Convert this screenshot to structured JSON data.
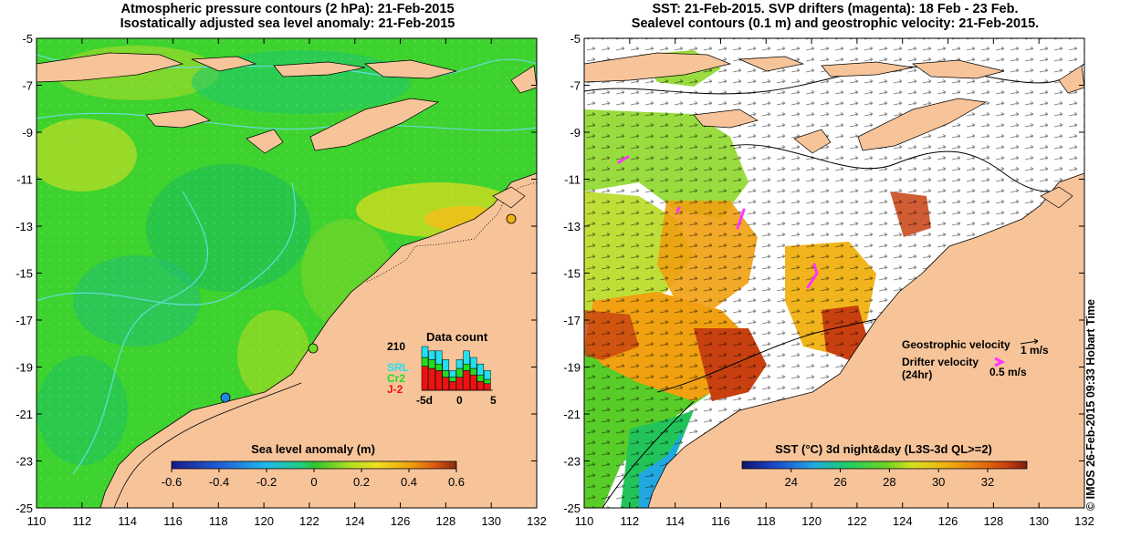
{
  "left_panel": {
    "title_line1": "Atmospheric pressure contours (2 hPa): 21-Feb-2015",
    "title_line2": "Isostatically adjusted sea level anomaly: 21-Feb-2015",
    "colorbar_title": "Sea level anomaly (m)",
    "colorbar_ticks": [
      "-0.6",
      "-0.4",
      "-0.2",
      "0",
      "0.2",
      "0.4",
      "0.6"
    ],
    "data_count": {
      "title": "Data count",
      "max_label": "210",
      "x_ticks": [
        "-5d",
        "0",
        "5"
      ],
      "legend": [
        {
          "label": "SRL",
          "color": "#22e0f0"
        },
        {
          "label": "Cr2",
          "color": "#22dd22"
        },
        {
          "label": "J-2",
          "color": "#ee1111"
        }
      ]
    }
  },
  "right_panel": {
    "title_line1": "SST: 21-Feb-2015. SVP drifters (magenta): 18 Feb - 23 Feb.",
    "title_line2": "Sealevel contours (0.1 m) and geostrophic velocity: 21-Feb-2015.",
    "colorbar_title": "SST (°C) 3d night&day (L3S-3d QL>=2)",
    "colorbar_ticks": [
      "24",
      "26",
      "28",
      "30",
      "32"
    ],
    "geostrophic_label": "Geostrophic velocity",
    "geostrophic_scale": "1 m/s",
    "drifter_label_1": "Drifter velocity",
    "drifter_label_2": "(24hr)",
    "drifter_scale": "0.5 m/s"
  },
  "axes": {
    "y_ticks": [
      "-5",
      "-7",
      "-9",
      "-11",
      "-13",
      "-15",
      "-17",
      "-19",
      "-21",
      "-23",
      "-25"
    ],
    "x_ticks": [
      "110",
      "112",
      "114",
      "116",
      "118",
      "120",
      "122",
      "124",
      "126",
      "128",
      "130",
      "132"
    ]
  },
  "credit": "© IMOS 26-Feb-2015 09:33 Hobart Time",
  "colors": {
    "land": "#f7c49a",
    "ocean_green": "#3ed22e",
    "drifter": "#ff33ff",
    "pressure_contour": "#66dddd"
  }
}
